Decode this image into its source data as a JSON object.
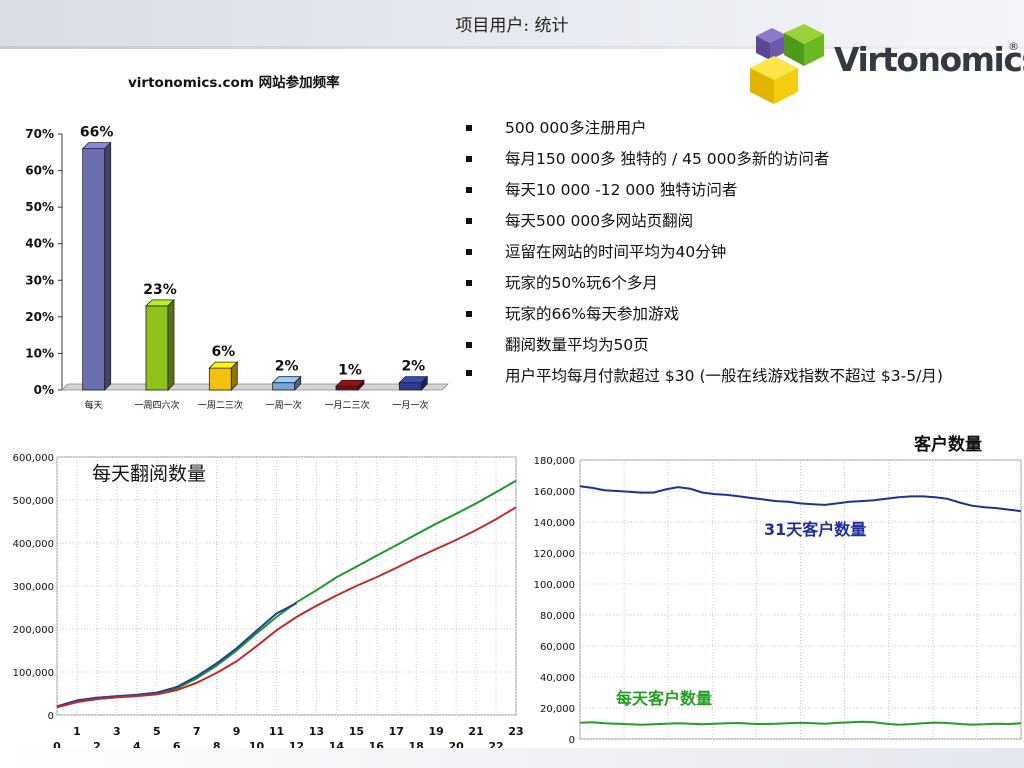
{
  "slide": {
    "title": "项目用户: 统计"
  },
  "logo": {
    "text": "Virtonomics",
    "reg": "®"
  },
  "bullets": [
    "500 000多注册用户",
    "每月150 000多 独特的 / 45 000多新的访问者",
    "每天10 000 -12 000 独特访问者",
    "每天500 000多网站页翻阅",
    "逗留在网站的时间平均为40分钟",
    "玩家的50%玩6个多月",
    "玩家的66%每天参加游戏",
    "翻阅数量平均为50页",
    "用户平均每月付款超过 $30 (一般在线游戏指数不超过 $3-5/月)"
  ],
  "colors": {
    "bar_colors": [
      "#6b6fb0",
      "#8fc21a",
      "#f2c20e",
      "#7aa6dc",
      "#7a0c10",
      "#2c3b93"
    ],
    "chart2_series": [
      "#1a9a2a",
      "#1f3fa0",
      "#c42a2a"
    ],
    "chart3_series": [
      "#1f2f9c",
      "#22a022"
    ]
  },
  "chart_data": [
    {
      "type": "bar",
      "title": "virtonomics.com 网站参加频率",
      "categories": [
        "每天",
        "一周四六次",
        "一周二三次",
        "一周一次",
        "一月二三次",
        "一月一次"
      ],
      "values": [
        66,
        23,
        6,
        2,
        1,
        2
      ],
      "value_labels": [
        "66%",
        "23%",
        "6%",
        "2%",
        "1%",
        "2%"
      ],
      "yticks": [
        "0%",
        "10%",
        "20%",
        "30%",
        "40%",
        "50%",
        "60%",
        "70%"
      ],
      "ylim": [
        0,
        70
      ]
    },
    {
      "type": "line",
      "title": "每天翻阅数量",
      "x": [
        0,
        1,
        2,
        3,
        4,
        5,
        6,
        7,
        8,
        9,
        10,
        11,
        12,
        13,
        14,
        15,
        16,
        17,
        18,
        19,
        20,
        21,
        22,
        23
      ],
      "xticks": [
        "0",
        "1",
        "2",
        "3",
        "4",
        "5",
        "6",
        "7",
        "8",
        "9",
        "10",
        "11",
        "12",
        "13",
        "14",
        "15",
        "16",
        "17",
        "18",
        "19",
        "20",
        "21",
        "22",
        "23"
      ],
      "yticks": [
        "0",
        "100,000",
        "200,000",
        "300,000",
        "400,000",
        "500,000",
        "600,000"
      ],
      "ylim": [
        0,
        600000
      ],
      "series": [
        {
          "x": [
            0,
            1,
            2,
            3,
            4,
            5,
            6,
            7,
            8,
            9,
            10,
            11,
            12,
            13,
            14,
            15,
            16,
            17,
            18,
            19,
            20,
            21,
            22,
            23
          ],
          "values": [
            20000,
            32000,
            40000,
            43000,
            46000,
            50000,
            62000,
            85000,
            115000,
            150000,
            190000,
            228000,
            262000,
            290000,
            320000,
            345000,
            370000,
            395000,
            420000,
            445000,
            468000,
            492000,
            518000,
            545000
          ]
        },
        {
          "x": [
            0,
            1,
            2,
            3,
            4,
            5,
            6,
            7,
            8,
            9,
            10,
            11,
            12
          ],
          "values": [
            20000,
            34000,
            40000,
            44000,
            47000,
            52000,
            65000,
            90000,
            120000,
            155000,
            196000,
            236000,
            260000
          ]
        },
        {
          "x": [
            0,
            1,
            2,
            3,
            4,
            5,
            6,
            7,
            8,
            9,
            10,
            11,
            12,
            13,
            14,
            15,
            16,
            17,
            18,
            19,
            20,
            21,
            22,
            23
          ],
          "values": [
            18000,
            30000,
            37000,
            41000,
            44000,
            48000,
            58000,
            75000,
            98000,
            125000,
            160000,
            197000,
            228000,
            254000,
            278000,
            300000,
            320000,
            342000,
            365000,
            386000,
            407000,
            430000,
            455000,
            483000
          ]
        }
      ]
    },
    {
      "type": "line",
      "title": "客户数量",
      "yticks": [
        "0",
        "20,000",
        "40,000",
        "60,000",
        "80,000",
        "100,000",
        "120,000",
        "140,000",
        "160,000",
        "180,000"
      ],
      "ylim": [
        0,
        180000
      ],
      "series": [
        {
          "name": "31天客户数量",
          "values": [
            163000,
            162000,
            160500,
            160000,
            159500,
            159000,
            159000,
            161000,
            162500,
            161500,
            159000,
            158000,
            157500,
            156500,
            155500,
            154500,
            153500,
            153000,
            152000,
            151500,
            151000,
            152000,
            153000,
            153500,
            154000,
            155000,
            156000,
            156500,
            156500,
            156000,
            155000,
            152500,
            150500,
            149500,
            149000,
            148000,
            147000
          ]
        },
        {
          "name": "每天客户数量",
          "values": [
            10500,
            10800,
            10200,
            9800,
            9500,
            9200,
            9500,
            9900,
            10200,
            9800,
            9500,
            9800,
            10100,
            10300,
            9900,
            9600,
            9800,
            10200,
            10500,
            10200,
            9900,
            10400,
            10700,
            11100,
            10800,
            9800,
            9200,
            9600,
            10100,
            10600,
            10300,
            9700,
            9300,
            9500,
            9900,
            9600,
            10100
          ]
        }
      ]
    }
  ]
}
